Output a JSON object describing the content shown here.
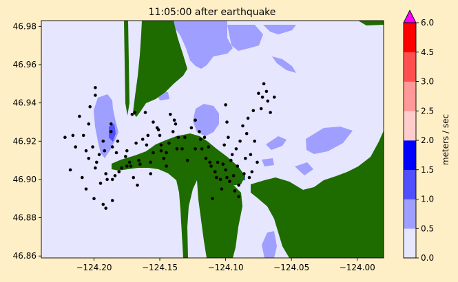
{
  "chart_data": {
    "type": "heatmap",
    "title": "11:05:00 after earthquake",
    "xlabel": "",
    "ylabel": "",
    "xlim": [
      -124.24,
      -123.98
    ],
    "ylim": [
      46.859,
      46.983
    ],
    "x_ticks": [
      {
        "value": -124.2,
        "label": "−124.20"
      },
      {
        "value": -124.15,
        "label": "−124.15"
      },
      {
        "value": -124.1,
        "label": "−124.10"
      },
      {
        "value": -124.05,
        "label": "−124.05"
      },
      {
        "value": -124.0,
        "label": "−124.00"
      }
    ],
    "y_ticks": [
      {
        "value": 46.86,
        "label": "46.86"
      },
      {
        "value": 46.88,
        "label": "46.88"
      },
      {
        "value": 46.9,
        "label": "46.90"
      },
      {
        "value": 46.92,
        "label": "46.92"
      },
      {
        "value": 46.94,
        "label": "46.94"
      },
      {
        "value": 46.96,
        "label": "46.96"
      },
      {
        "value": 46.98,
        "label": "46.98"
      }
    ],
    "colorbar": {
      "label": "meters / sec",
      "extend": "max",
      "levels": [
        {
          "from": 0.0,
          "to": 0.5,
          "color": "#e6e6ff"
        },
        {
          "from": 0.5,
          "to": 1.0,
          "color": "#9f9fff"
        },
        {
          "from": 1.0,
          "to": 1.5,
          "color": "#5050ff"
        },
        {
          "from": 1.5,
          "to": 2.0,
          "color": "#0000ff"
        },
        {
          "from": 2.0,
          "to": 2.5,
          "color": "#ffcccc"
        },
        {
          "from": 2.5,
          "to": 3.0,
          "color": "#ff9999"
        },
        {
          "from": 3.0,
          "to": 4.5,
          "color": "#ff5050"
        },
        {
          "from": 4.5,
          "to": 6.0,
          "color": "#ff0000"
        }
      ],
      "extend_color": "#ff00ff",
      "tick_labels": [
        "0.0",
        "0.5",
        "1.0",
        "1.5",
        "2.0",
        "2.5",
        "3.0",
        "4.5",
        "6.0"
      ]
    },
    "land_color": "#1e6b00",
    "marker_color": "#000000",
    "markers": [
      [
        -124.222,
        46.922
      ],
      [
        -124.218,
        46.905
      ],
      [
        -124.216,
        46.923
      ],
      [
        -124.214,
        46.917
      ],
      [
        -124.211,
        46.933
      ],
      [
        -124.209,
        46.901
      ],
      [
        -124.208,
        46.923
      ],
      [
        -124.206,
        46.915
      ],
      [
        -124.206,
        46.895
      ],
      [
        -124.204,
        46.929
      ],
      [
        -124.204,
        46.911
      ],
      [
        -124.203,
        46.938
      ],
      [
        -124.201,
        46.917
      ],
      [
        -124.2,
        46.89
      ],
      [
        -124.199,
        46.948
      ],
      [
        -124.199,
        46.944
      ],
      [
        -124.199,
        46.906
      ],
      [
        -124.198,
        46.909
      ],
      [
        -124.196,
        46.913
      ],
      [
        -124.195,
        46.898
      ],
      [
        -124.193,
        46.92
      ],
      [
        -124.193,
        46.887
      ],
      [
        -124.192,
        46.915
      ],
      [
        -124.191,
        46.885
      ],
      [
        -124.191,
        46.903
      ],
      [
        -124.19,
        46.9
      ],
      [
        -124.187,
        46.929
      ],
      [
        -124.187,
        46.925
      ],
      [
        -124.186,
        46.917
      ],
      [
        -124.186,
        46.9
      ],
      [
        -124.186,
        46.889
      ],
      [
        -124.184,
        46.902
      ],
      [
        -124.183,
        46.914
      ],
      [
        -124.182,
        46.92
      ],
      [
        -124.181,
        46.904
      ],
      [
        -124.179,
        46.906
      ],
      [
        -124.176,
        46.912
      ],
      [
        -124.175,
        46.915
      ],
      [
        -124.175,
        46.907
      ],
      [
        -124.173,
        46.909
      ],
      [
        -124.172,
        46.907
      ],
      [
        -124.171,
        46.934
      ],
      [
        -124.17,
        46.901
      ],
      [
        -124.169,
        46.935
      ],
      [
        -124.168,
        46.919
      ],
      [
        -124.167,
        46.897
      ],
      [
        -124.166,
        46.91
      ],
      [
        -124.165,
        46.908
      ],
      [
        -124.163,
        46.921
      ],
      [
        -124.161,
        46.935
      ],
      [
        -124.16,
        46.918
      ],
      [
        -124.159,
        46.923
      ],
      [
        -124.157,
        46.909
      ],
      [
        -124.157,
        46.903
      ],
      [
        -124.155,
        46.93
      ],
      [
        -124.155,
        46.914
      ],
      [
        -124.152,
        46.927
      ],
      [
        -124.151,
        46.926
      ],
      [
        -124.15,
        46.923
      ],
      [
        -124.149,
        46.918
      ],
      [
        -124.149,
        46.915
      ],
      [
        -124.147,
        46.911
      ],
      [
        -124.145,
        46.914
      ],
      [
        -124.145,
        46.907
      ],
      [
        -124.143,
        46.919
      ],
      [
        -124.142,
        46.934
      ],
      [
        -124.14,
        46.925
      ],
      [
        -124.139,
        46.931
      ],
      [
        -124.138,
        46.929
      ],
      [
        -124.137,
        46.916
      ],
      [
        -124.136,
        46.922
      ],
      [
        -124.133,
        46.916
      ],
      [
        -124.131,
        46.922
      ],
      [
        -124.129,
        46.91
      ],
      [
        -124.126,
        46.927
      ],
      [
        -124.123,
        46.931
      ],
      [
        -124.123,
        46.916
      ],
      [
        -124.12,
        46.925
      ],
      [
        -124.119,
        46.921
      ],
      [
        -124.118,
        46.916
      ],
      [
        -124.116,
        46.922
      ],
      [
        -124.115,
        46.911
      ],
      [
        -124.113,
        46.917
      ],
      [
        -124.112,
        46.909
      ],
      [
        -124.111,
        46.907
      ],
      [
        -124.11,
        46.89
      ],
      [
        -124.108,
        46.904
      ],
      [
        -124.107,
        46.901
      ],
      [
        -124.106,
        46.909
      ],
      [
        -124.104,
        46.9
      ],
      [
        -124.103,
        46.895
      ],
      [
        -124.102,
        46.908
      ],
      [
        -124.101,
        46.918
      ],
      [
        -124.1,
        46.939
      ],
      [
        -124.1,
        46.905
      ],
      [
        -124.099,
        46.93
      ],
      [
        -124.099,
        46.901
      ],
      [
        -124.098,
        46.922
      ],
      [
        -124.097,
        46.899
      ],
      [
        -124.096,
        46.91
      ],
      [
        -124.095,
        46.913
      ],
      [
        -124.094,
        46.902
      ],
      [
        -124.093,
        46.894
      ],
      [
        -124.092,
        46.916
      ],
      [
        -124.091,
        46.907
      ],
      [
        -124.09,
        46.897
      ],
      [
        -124.09,
        46.891
      ],
      [
        -124.089,
        46.92
      ],
      [
        -124.087,
        46.928
      ],
      [
        -124.086,
        46.903
      ],
      [
        -124.085,
        46.911
      ],
      [
        -124.084,
        46.924
      ],
      [
        -124.083,
        46.932
      ],
      [
        -124.082,
        46.901
      ],
      [
        -124.081,
        46.913
      ],
      [
        -124.08,
        46.904
      ],
      [
        -124.079,
        46.936
      ],
      [
        -124.078,
        46.92
      ],
      [
        -124.076,
        46.909
      ],
      [
        -124.075,
        46.945
      ],
      [
        -124.073,
        46.937
      ],
      [
        -124.072,
        46.943
      ],
      [
        -124.071,
        46.95
      ],
      [
        -124.069,
        46.946
      ],
      [
        -124.068,
        46.941
      ],
      [
        -124.066,
        46.935
      ],
      [
        -124.063,
        46.943
      ]
    ]
  }
}
